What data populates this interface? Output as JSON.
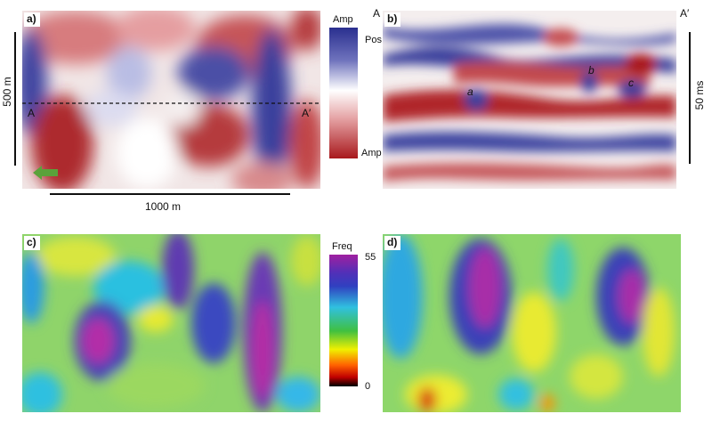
{
  "panels": {
    "a": {
      "label": "a)"
    },
    "b": {
      "label": "b)"
    },
    "c": {
      "label": "c)"
    },
    "d": {
      "label": "d)"
    }
  },
  "panel_a": {
    "point_start": "A",
    "point_end": "A′",
    "scale_x": "1000 m",
    "scale_y": "500 m",
    "arrow_icon": "green-arrow-icon"
  },
  "panel_b": {
    "corner_left": "A",
    "corner_right": "A′",
    "scale_time": "50 ms",
    "features": [
      "a",
      "b",
      "c"
    ]
  },
  "amp_colorbar": {
    "title": "Amp",
    "top_label": "Pos",
    "bottom_label": "Amp",
    "colors": [
      "#2a2f8f",
      "#ffffff",
      "#a8181c"
    ]
  },
  "freq_colorbar": {
    "title": "Freq",
    "top_label": "55",
    "bottom_label": "0",
    "colors": [
      "#a020a0",
      "#3040c0",
      "#30c0e0",
      "#40c040",
      "#f0f000",
      "#ff6000",
      "#c00000",
      "#000000"
    ]
  }
}
